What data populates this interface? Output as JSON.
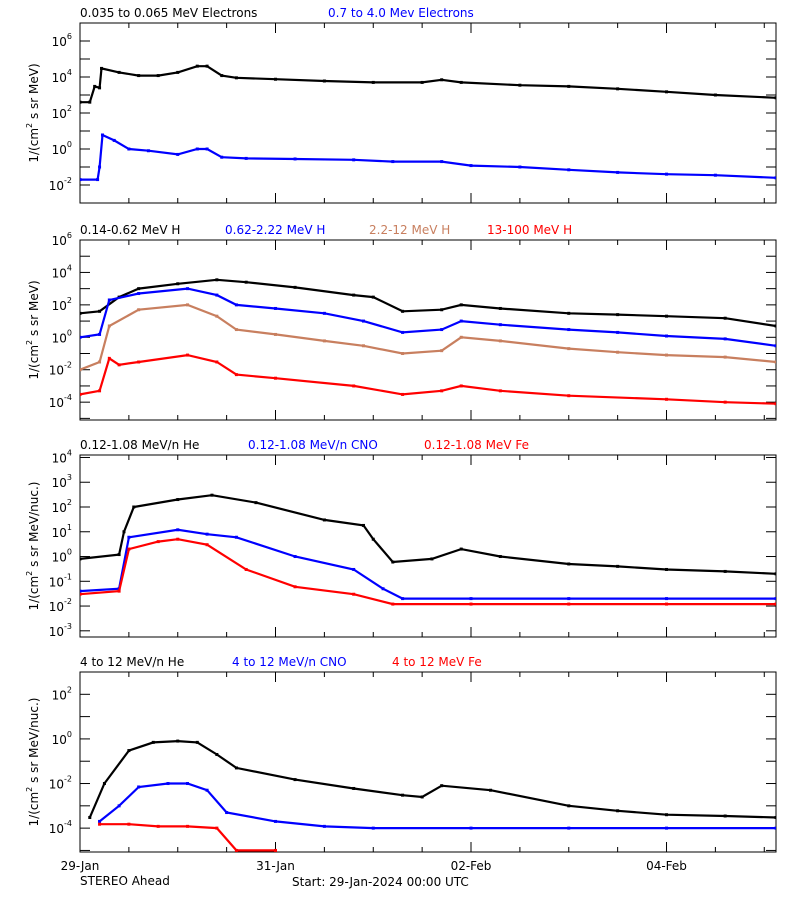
{
  "colors": {
    "black": "#000000",
    "blue": "#0000ff",
    "brown": "#c87f5f",
    "red": "#ff0000"
  },
  "footer": {
    "left": "STEREO Ahead",
    "start": "Start: 29-Jan-2024 00:00 UTC"
  },
  "x_axis": {
    "unit": "days since 29-Jan-2024 00:00 UTC",
    "xlim": [
      0,
      7.12
    ],
    "ticks": [
      {
        "day": 0,
        "label": "29-Jan"
      },
      {
        "day": 2,
        "label": "31-Jan"
      },
      {
        "day": 4,
        "label": "02-Feb"
      },
      {
        "day": 6,
        "label": "04-Feb"
      }
    ],
    "minor_step_days": 0.5
  },
  "chart_data": [
    {
      "type": "scatter",
      "yscale": "log",
      "ylim_log10": [
        -3,
        7
      ],
      "ylabel": {
        "pre": "1/(cm",
        "sup": "2",
        "post": " s sr MeV)"
      },
      "ytick_labels_exp": [
        6,
        4,
        2,
        0,
        -2
      ],
      "legend": [
        {
          "text": "0.035 to 0.065 MeV Electrons",
          "color": "black"
        },
        {
          "text": "0.7 to 4.0 Mev Electrons",
          "color": "blue"
        }
      ],
      "series": [
        {
          "name": "0.035 to 0.065 MeV Electrons",
          "color": "black",
          "points": [
            [
              0.0,
              400.0
            ],
            [
              0.1,
              400.0
            ],
            [
              0.15,
              3000.0
            ],
            [
              0.2,
              2500.0
            ],
            [
              0.22,
              30000.0
            ],
            [
              0.4,
              18000.0
            ],
            [
              0.6,
              12000.0
            ],
            [
              0.8,
              12000.0
            ],
            [
              1.0,
              18000.0
            ],
            [
              1.2,
              40000.0
            ],
            [
              1.3,
              40000.0
            ],
            [
              1.45,
              12000.0
            ],
            [
              1.6,
              9000.0
            ],
            [
              2.0,
              7500.0
            ],
            [
              2.5,
              6000.0
            ],
            [
              3.0,
              5000.0
            ],
            [
              3.5,
              5000.0
            ],
            [
              3.7,
              7000.0
            ],
            [
              3.9,
              5000.0
            ],
            [
              4.5,
              3500.0
            ],
            [
              5.0,
              3000.0
            ],
            [
              5.5,
              2200.0
            ],
            [
              6.0,
              1500.0
            ],
            [
              6.5,
              1000.0
            ],
            [
              7.12,
              700.0
            ]
          ]
        },
        {
          "name": "0.7 to 4.0 Mev Electrons",
          "color": "blue",
          "points": [
            [
              0.0,
              0.02
            ],
            [
              0.18,
              0.02
            ],
            [
              0.2,
              0.1
            ],
            [
              0.23,
              6
            ],
            [
              0.35,
              3
            ],
            [
              0.5,
              1
            ],
            [
              0.7,
              0.8
            ],
            [
              1.0,
              0.5
            ],
            [
              1.2,
              1
            ],
            [
              1.3,
              1
            ],
            [
              1.45,
              0.35
            ],
            [
              1.7,
              0.3
            ],
            [
              2.2,
              0.28
            ],
            [
              2.8,
              0.25
            ],
            [
              3.2,
              0.2
            ],
            [
              3.7,
              0.2
            ],
            [
              4.0,
              0.12
            ],
            [
              4.5,
              0.1
            ],
            [
              5.0,
              0.07
            ],
            [
              5.5,
              0.05
            ],
            [
              6.0,
              0.04
            ],
            [
              6.5,
              0.035
            ],
            [
              7.12,
              0.025
            ]
          ]
        }
      ]
    },
    {
      "type": "scatter",
      "yscale": "log",
      "ylim_log10": [
        -5.1,
        6
      ],
      "ylabel": {
        "pre": "1/(cm",
        "sup": "2",
        "post": " s sr MeV)"
      },
      "ytick_labels_exp": [
        6,
        4,
        2,
        0,
        -2,
        -4
      ],
      "legend": [
        {
          "text": "0.14-0.62 MeV H",
          "color": "black"
        },
        {
          "text": "0.62-2.22 MeV H",
          "color": "blue"
        },
        {
          "text": "2.2-12 MeV H",
          "color": "brown"
        },
        {
          "text": "13-100 MeV H",
          "color": "red"
        }
      ],
      "series": [
        {
          "name": "0.14-0.62 MeV H",
          "color": "black",
          "points": [
            [
              0.0,
              30
            ],
            [
              0.2,
              40
            ],
            [
              0.4,
              300
            ],
            [
              0.6,
              1000
            ],
            [
              1.0,
              2000
            ],
            [
              1.4,
              3500
            ],
            [
              1.7,
              2500
            ],
            [
              2.2,
              1200
            ],
            [
              2.8,
              400
            ],
            [
              3.0,
              300
            ],
            [
              3.3,
              40
            ],
            [
              3.7,
              50
            ],
            [
              3.9,
              100
            ],
            [
              4.3,
              60
            ],
            [
              5.0,
              30
            ],
            [
              5.5,
              25
            ],
            [
              6.0,
              20
            ],
            [
              6.6,
              15
            ],
            [
              7.12,
              5
            ]
          ]
        },
        {
          "name": "0.62-2.22 MeV H",
          "color": "blue",
          "points": [
            [
              0.0,
              1
            ],
            [
              0.2,
              1.5
            ],
            [
              0.3,
              200
            ],
            [
              0.6,
              500
            ],
            [
              1.1,
              1000
            ],
            [
              1.4,
              400
            ],
            [
              1.6,
              100
            ],
            [
              2.0,
              60
            ],
            [
              2.5,
              30
            ],
            [
              2.9,
              10
            ],
            [
              3.3,
              2
            ],
            [
              3.7,
              3
            ],
            [
              3.9,
              10
            ],
            [
              4.3,
              6
            ],
            [
              5.0,
              3
            ],
            [
              5.5,
              2
            ],
            [
              6.0,
              1.2
            ],
            [
              6.6,
              0.8
            ],
            [
              7.12,
              0.3
            ]
          ]
        },
        {
          "name": "2.2-12 MeV H",
          "color": "brown",
          "points": [
            [
              0.0,
              0.01
            ],
            [
              0.2,
              0.03
            ],
            [
              0.3,
              5
            ],
            [
              0.6,
              50
            ],
            [
              1.1,
              100
            ],
            [
              1.4,
              20
            ],
            [
              1.6,
              3
            ],
            [
              2.0,
              1.5
            ],
            [
              2.5,
              0.6
            ],
            [
              2.9,
              0.3
            ],
            [
              3.3,
              0.1
            ],
            [
              3.7,
              0.15
            ],
            [
              3.9,
              1
            ],
            [
              4.3,
              0.6
            ],
            [
              5.0,
              0.2
            ],
            [
              5.5,
              0.12
            ],
            [
              6.0,
              0.08
            ],
            [
              6.6,
              0.06
            ],
            [
              7.12,
              0.03
            ]
          ]
        },
        {
          "name": "13-100 MeV H",
          "color": "red",
          "points": [
            [
              0.0,
              0.0003
            ],
            [
              0.2,
              0.0005
            ],
            [
              0.3,
              0.05
            ],
            [
              0.4,
              0.02
            ],
            [
              0.6,
              0.03
            ],
            [
              1.1,
              0.08
            ],
            [
              1.4,
              0.03
            ],
            [
              1.6,
              0.005
            ],
            [
              2.0,
              0.003
            ],
            [
              2.8,
              0.001
            ],
            [
              3.3,
              0.0003
            ],
            [
              3.7,
              0.0005
            ],
            [
              3.9,
              0.001
            ],
            [
              4.3,
              0.0005
            ],
            [
              5.0,
              0.00025
            ],
            [
              6.0,
              0.00015
            ],
            [
              6.6,
              0.0001
            ],
            [
              7.12,
              8e-05
            ]
          ]
        }
      ]
    },
    {
      "type": "scatter",
      "yscale": "log",
      "ylim_log10": [
        -3.25,
        4.1
      ],
      "ylabel": {
        "pre": "1/(cm",
        "sup": "2",
        "post": " s sr MeV/nuc.)"
      },
      "ytick_labels_exp": [
        4,
        3,
        2,
        1,
        0,
        -1,
        -2,
        -3
      ],
      "legend": [
        {
          "text": "0.12-1.08 MeV/n He",
          "color": "black"
        },
        {
          "text": "0.12-1.08 MeV/n CNO",
          "color": "blue"
        },
        {
          "text": "0.12-1.08 MeV Fe",
          "color": "red"
        }
      ],
      "series": [
        {
          "name": "0.12-1.08 MeV/n He",
          "color": "black",
          "points": [
            [
              0.0,
              0.8
            ],
            [
              0.4,
              1.2
            ],
            [
              0.45,
              10
            ],
            [
              0.55,
              100
            ],
            [
              1.0,
              200
            ],
            [
              1.35,
              300
            ],
            [
              1.8,
              150
            ],
            [
              2.5,
              30
            ],
            [
              2.9,
              18
            ],
            [
              3.0,
              5
            ],
            [
              3.2,
              0.6
            ],
            [
              3.6,
              0.8
            ],
            [
              3.9,
              2
            ],
            [
              4.3,
              1
            ],
            [
              5.0,
              0.5
            ],
            [
              5.5,
              0.4
            ],
            [
              6.0,
              0.3
            ],
            [
              6.6,
              0.25
            ],
            [
              7.12,
              0.2
            ]
          ]
        },
        {
          "name": "0.12-1.08 MeV/n CNO",
          "color": "blue",
          "points": [
            [
              0.0,
              0.04
            ],
            [
              0.4,
              0.05
            ],
            [
              0.5,
              6
            ],
            [
              1.0,
              12
            ],
            [
              1.3,
              8
            ],
            [
              1.6,
              6
            ],
            [
              2.2,
              1
            ],
            [
              2.8,
              0.3
            ],
            [
              3.1,
              0.05
            ],
            [
              3.3,
              0.02
            ],
            [
              4.0,
              0.02
            ],
            [
              5.0,
              0.02
            ],
            [
              6.0,
              0.02
            ],
            [
              7.12,
              0.02
            ]
          ]
        },
        {
          "name": "0.12-1.08 MeV Fe",
          "color": "red",
          "points": [
            [
              0.0,
              0.03
            ],
            [
              0.4,
              0.04
            ],
            [
              0.5,
              2
            ],
            [
              0.8,
              4
            ],
            [
              1.0,
              5
            ],
            [
              1.3,
              3
            ],
            [
              1.7,
              0.3
            ],
            [
              2.2,
              0.06
            ],
            [
              2.8,
              0.03
            ],
            [
              3.2,
              0.012
            ],
            [
              4.0,
              0.012
            ],
            [
              5.0,
              0.012
            ],
            [
              6.0,
              0.012
            ],
            [
              7.12,
              0.012
            ]
          ]
        }
      ]
    },
    {
      "type": "scatter",
      "yscale": "log",
      "ylim_log10": [
        -5.07,
        3
      ],
      "ylabel": {
        "pre": "1/(cm",
        "sup": "2",
        "post": " s sr MeV/nuc.)"
      },
      "ytick_labels_exp": [
        2,
        0,
        -2,
        -4
      ],
      "legend": [
        {
          "text": "4 to 12 MeV/n He",
          "color": "black"
        },
        {
          "text": "4 to 12 MeV/n CNO",
          "color": "blue"
        },
        {
          "text": "4 to 12 MeV Fe",
          "color": "red"
        }
      ],
      "series": [
        {
          "name": "4 to 12 MeV/n He",
          "color": "black",
          "points": [
            [
              0.1,
              0.0003
            ],
            [
              0.25,
              0.01
            ],
            [
              0.5,
              0.3
            ],
            [
              0.75,
              0.7
            ],
            [
              1.0,
              0.8
            ],
            [
              1.2,
              0.7
            ],
            [
              1.4,
              0.2
            ],
            [
              1.6,
              0.05
            ],
            [
              2.2,
              0.015
            ],
            [
              2.8,
              0.006
            ],
            [
              3.3,
              0.003
            ],
            [
              3.5,
              0.0025
            ],
            [
              3.7,
              0.008
            ],
            [
              4.2,
              0.005
            ],
            [
              5.0,
              0.001
            ],
            [
              5.5,
              0.0006
            ],
            [
              6.0,
              0.0004
            ],
            [
              6.6,
              0.00035
            ],
            [
              7.12,
              0.0003
            ]
          ]
        },
        {
          "name": "4 to 12 MeV/n CNO",
          "color": "blue",
          "points": [
            [
              0.2,
              0.0002
            ],
            [
              0.4,
              0.001
            ],
            [
              0.6,
              0.007
            ],
            [
              0.9,
              0.01
            ],
            [
              1.1,
              0.01
            ],
            [
              1.3,
              0.005
            ],
            [
              1.5,
              0.0005
            ],
            [
              2.0,
              0.0002
            ],
            [
              2.5,
              0.00012
            ],
            [
              3.0,
              0.0001
            ],
            [
              4.0,
              0.0001
            ],
            [
              5.0,
              0.0001
            ],
            [
              6.0,
              0.0001
            ],
            [
              7.12,
              0.0001
            ]
          ]
        },
        {
          "name": "4 to 12 MeV Fe",
          "color": "red",
          "points": [
            [
              0.2,
              0.00015
            ],
            [
              0.5,
              0.00015
            ],
            [
              0.8,
              0.00012
            ],
            [
              1.1,
              0.00012
            ],
            [
              1.4,
              0.0001
            ],
            [
              1.6,
              1e-05
            ],
            [
              2.0,
              1e-05
            ]
          ]
        }
      ]
    }
  ]
}
